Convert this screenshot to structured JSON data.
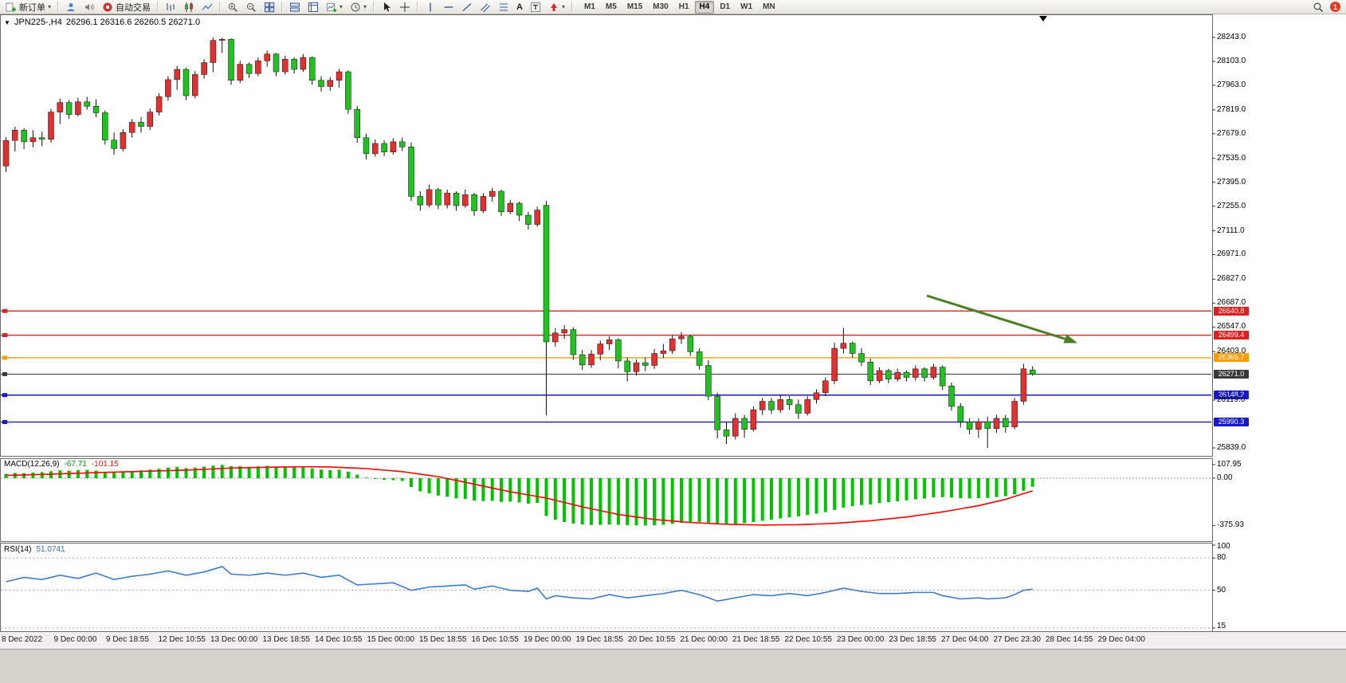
{
  "toolbar": {
    "new_order": "新订单",
    "autotrade": "自动交易",
    "timeframes": [
      "M1",
      "M5",
      "M15",
      "M30",
      "H1",
      "H4",
      "D1",
      "W1",
      "MN"
    ],
    "active_timeframe": "H4",
    "notification_badge": "1"
  },
  "chart_header": {
    "symbol_period": "JPN225-,H4",
    "ohlc": "26296.1 26316.6 26260.5 26271.0"
  },
  "price_axis_ticks": [
    "28243.0",
    "28103.0",
    "27963.0",
    "27819.0",
    "27679.0",
    "27535.0",
    "27395.0",
    "27255.0",
    "27111.0",
    "26971.0",
    "26827.0",
    "26687.0",
    "26547.0",
    "26403.0",
    "26119.0",
    "25839.0"
  ],
  "price_lines": [
    {
      "name": "resistance-1",
      "value": 26640.8,
      "label": "26640.8",
      "color": "#e02020"
    },
    {
      "name": "resistance-2",
      "value": 26499.4,
      "label": "26499.4",
      "color": "#e02020"
    },
    {
      "name": "pivot-orange",
      "value": 26366.7,
      "label": "26366.7",
      "color": "#ff9c00"
    },
    {
      "name": "current-price",
      "value": 26271.0,
      "label": "26271.0",
      "color": "#3a3a3a"
    },
    {
      "name": "support-1",
      "value": 26148.2,
      "label": "26148.2",
      "color": "#1818cc"
    },
    {
      "name": "support-2",
      "value": 25990.3,
      "label": "25990.3",
      "color": "#1818cc"
    }
  ],
  "macd_panel": {
    "label": "MACD(12,26,9)",
    "macd_value": "-67.71",
    "signal_value": "-101.15",
    "axis": [
      "107.95",
      "0.00",
      "-375.93"
    ]
  },
  "rsi_panel": {
    "label": "RSI(14)",
    "value": "51.0741",
    "axis": [
      "100",
      "80",
      "50",
      "15"
    ],
    "levels": [
      80,
      50,
      15
    ]
  },
  "time_axis": [
    "8 Dec 2022",
    "9 Dec 00:00",
    "9 Dec 18:55",
    "12 Dec 10:55",
    "13 Dec 00:00",
    "13 Dec 18:55",
    "14 Dec 10:55",
    "15 Dec 00:00",
    "15 Dec 18:55",
    "16 Dec 10:55",
    "19 Dec 00:00",
    "19 Dec 18:55",
    "20 Dec 10:55",
    "21 Dec 00:00",
    "21 Dec 18:55",
    "22 Dec 10:55",
    "23 Dec 00:00",
    "23 Dec 18:55",
    "27 Dec 04:00",
    "27 Dec 23:30",
    "28 Dec 14:55",
    "29 Dec 04:00"
  ],
  "chart_data": [
    {
      "type": "candlestick",
      "title": "JPN225- H4",
      "up_color": "#e03030",
      "down_color": "#22c122",
      "price_range": [
        25838,
        28243
      ],
      "note": "red = bullish, green = bearish (CN convention)",
      "candles": [
        [
          27490,
          27660,
          27455,
          27640
        ],
        [
          27640,
          27720,
          27575,
          27700
        ],
        [
          27700,
          27712,
          27590,
          27632
        ],
        [
          27632,
          27700,
          27600,
          27656
        ],
        [
          27656,
          27692,
          27606,
          27646
        ],
        [
          27646,
          27825,
          27626,
          27806
        ],
        [
          27806,
          27885,
          27736,
          27862
        ],
        [
          27862,
          27876,
          27766,
          27792
        ],
        [
          27792,
          27890,
          27780,
          27866
        ],
        [
          27866,
          27896,
          27820,
          27840
        ],
        [
          27840,
          27880,
          27776,
          27802
        ],
        [
          27802,
          27816,
          27616,
          27642
        ],
        [
          27642,
          27686,
          27556,
          27592
        ],
        [
          27592,
          27706,
          27576,
          27686
        ],
        [
          27686,
          27766,
          27656,
          27746
        ],
        [
          27746,
          27776,
          27686,
          27722
        ],
        [
          27722,
          27826,
          27702,
          27806
        ],
        [
          27806,
          27916,
          27786,
          27896
        ],
        [
          27896,
          28016,
          27872,
          27996
        ],
        [
          27996,
          28076,
          27936,
          28056
        ],
        [
          28056,
          28066,
          27876,
          27902
        ],
        [
          27902,
          28046,
          27886,
          28026
        ],
        [
          28026,
          28116,
          28002,
          28096
        ],
        [
          28096,
          28243,
          28040,
          28226
        ],
        [
          28226,
          28240,
          28152,
          28232
        ],
        [
          28232,
          28238,
          27966,
          27992
        ],
        [
          27992,
          28106,
          27976,
          28086
        ],
        [
          28086,
          28096,
          28006,
          28032
        ],
        [
          28032,
          28126,
          28016,
          28106
        ],
        [
          28106,
          28166,
          28072,
          28146
        ],
        [
          28146,
          28152,
          28016,
          28042
        ],
        [
          28042,
          28136,
          28026,
          28116
        ],
        [
          28116,
          28126,
          28032,
          28056
        ],
        [
          28056,
          28146,
          28042,
          28126
        ],
        [
          28126,
          28132,
          27966,
          27992
        ],
        [
          27992,
          28016,
          27926,
          27956
        ],
        [
          27956,
          28012,
          27930,
          27992
        ],
        [
          27992,
          28060,
          27950,
          28042
        ],
        [
          28042,
          28050,
          27796,
          27822
        ],
        [
          27822,
          27842,
          27626,
          27656
        ],
        [
          27656,
          27680,
          27528,
          27562
        ],
        [
          27562,
          27645,
          27545,
          27622
        ],
        [
          27622,
          27640,
          27548,
          27572
        ],
        [
          27572,
          27652,
          27556,
          27632
        ],
        [
          27632,
          27656,
          27578,
          27602
        ],
        [
          27602,
          27628,
          27286,
          27312
        ],
        [
          27312,
          27342,
          27228,
          27262
        ],
        [
          27262,
          27382,
          27248,
          27352
        ],
        [
          27352,
          27362,
          27238,
          27262
        ],
        [
          27262,
          27352,
          27242,
          27332
        ],
        [
          27332,
          27342,
          27228,
          27258
        ],
        [
          27258,
          27352,
          27246,
          27322
        ],
        [
          27322,
          27332,
          27198,
          27228
        ],
        [
          27228,
          27332,
          27215,
          27312
        ],
        [
          27312,
          27362,
          27282,
          27342
        ],
        [
          27342,
          27352,
          27198,
          27222
        ],
        [
          27222,
          27292,
          27208,
          27272
        ],
        [
          27272,
          27282,
          27168,
          27202
        ],
        [
          27202,
          27222,
          27118,
          27148
        ],
        [
          27148,
          27252,
          27135,
          27232
        ],
        [
          27260,
          27285,
          26030,
          26460
        ],
        [
          26460,
          26540,
          26432,
          26512
        ],
        [
          26512,
          26558,
          26478,
          26532
        ],
        [
          26532,
          26545,
          26355,
          26385
        ],
        [
          26385,
          26412,
          26295,
          26325
        ],
        [
          26325,
          26412,
          26308,
          26388
        ],
        [
          26388,
          26468,
          26352,
          26448
        ],
        [
          26448,
          26492,
          26412,
          26472
        ],
        [
          26472,
          26482,
          26305,
          26348
        ],
        [
          26348,
          26368,
          26228,
          26285
        ],
        [
          26285,
          26358,
          26262,
          26338
        ],
        [
          26338,
          26368,
          26288,
          26322
        ],
        [
          26322,
          26418,
          26302,
          26392
        ],
        [
          26392,
          26448,
          26365,
          26408
        ],
        [
          26408,
          26498,
          26388,
          26478
        ],
        [
          26478,
          26518,
          26448,
          26492
        ],
        [
          26492,
          26502,
          26378,
          26402
        ],
        [
          26402,
          26422,
          26298,
          26322
        ],
        [
          26322,
          26352,
          26118,
          26142
        ],
        [
          26142,
          26162,
          25895,
          25945
        ],
        [
          25945,
          25992,
          25862,
          25908
        ],
        [
          25908,
          26042,
          25888,
          26012
        ],
        [
          26012,
          26032,
          25898,
          25948
        ],
        [
          25948,
          26082,
          25935,
          26062
        ],
        [
          26062,
          26132,
          26032,
          26112
        ],
        [
          26112,
          26132,
          26038,
          26062
        ],
        [
          26062,
          26152,
          26045,
          26122
        ],
        [
          26122,
          26142,
          26062,
          26092
        ],
        [
          26092,
          26122,
          26008,
          26042
        ],
        [
          26042,
          26142,
          26028,
          26122
        ],
        [
          26122,
          26182,
          26098,
          26162
        ],
        [
          26162,
          26252,
          26142,
          26232
        ],
        [
          26232,
          26455,
          26212,
          26422
        ],
        [
          26422,
          26542,
          26392,
          26452
        ],
        [
          26452,
          26462,
          26368,
          26392
        ],
        [
          26392,
          26422,
          26318,
          26342
        ],
        [
          26342,
          26362,
          26208,
          26232
        ],
        [
          26232,
          26312,
          26218,
          26292
        ],
        [
          26292,
          26302,
          26218,
          26242
        ],
        [
          26242,
          26302,
          26228,
          26282
        ],
        [
          26282,
          26292,
          26228,
          26252
        ],
        [
          26252,
          26322,
          26232,
          26302
        ],
        [
          26302,
          26312,
          26228,
          26252
        ],
        [
          26252,
          26332,
          26238,
          26312
        ],
        [
          26312,
          26322,
          26178,
          26202
        ],
        [
          26202,
          26222,
          26058,
          26082
        ],
        [
          26082,
          26102,
          25958,
          25992
        ],
        [
          25992,
          26012,
          25918,
          25948
        ],
        [
          25948,
          26012,
          25898,
          25992
        ],
        [
          25992,
          26022,
          25838,
          25952
        ],
        [
          25952,
          26032,
          25928,
          26012
        ],
        [
          26012,
          26032,
          25928,
          25962
        ],
        [
          25962,
          26132,
          25948,
          26112
        ],
        [
          26112,
          26332,
          26092,
          26302
        ],
        [
          26296.1,
          26316.6,
          26260.5,
          26271.0
        ]
      ]
    },
    {
      "type": "bar",
      "name": "MACD histogram",
      "color": "#00c400",
      "ylim": [
        -375.93,
        107.95
      ],
      "values": [
        35,
        42,
        40,
        45,
        48,
        55,
        62,
        60,
        64,
        66,
        60,
        52,
        46,
        50,
        56,
        62,
        68,
        75,
        84,
        90,
        80,
        84,
        92,
        100,
        106,
        96,
        95,
        90,
        94,
        98,
        88,
        90,
        85,
        88,
        78,
        68,
        64,
        68,
        52,
        28,
        5,
        -6,
        -12,
        -16,
        -22,
        -70,
        -105,
        -120,
        -138,
        -148,
        -160,
        -165,
        -178,
        -182,
        -180,
        -188,
        -186,
        -192,
        -202,
        -196,
        -300,
        -330,
        -348,
        -360,
        -368,
        -372,
        -371,
        -369,
        -371,
        -373,
        -374,
        -375.9,
        -374,
        -370,
        -362,
        -354,
        -349,
        -347,
        -353,
        -362,
        -367,
        -363,
        -357,
        -349,
        -339,
        -330,
        -320,
        -310,
        -303,
        -293,
        -282,
        -270,
        -252,
        -235,
        -222,
        -213,
        -208,
        -198,
        -190,
        -183,
        -176,
        -168,
        -161,
        -153,
        -151,
        -154,
        -159,
        -161,
        -159,
        -157,
        -150,
        -143,
        -128,
        -100,
        -67.71
      ]
    },
    {
      "type": "line",
      "name": "MACD signal",
      "color": "#ff0000",
      "points": [
        [
          0,
          22
        ],
        [
          5,
          32
        ],
        [
          10,
          44
        ],
        [
          15,
          54
        ],
        [
          20,
          64
        ],
        [
          25,
          80
        ],
        [
          30,
          88
        ],
        [
          33,
          91
        ],
        [
          36,
          89
        ],
        [
          40,
          76
        ],
        [
          44,
          52
        ],
        [
          48,
          12
        ],
        [
          52,
          -48
        ],
        [
          56,
          -108
        ],
        [
          60,
          -158
        ],
        [
          64,
          -228
        ],
        [
          68,
          -288
        ],
        [
          72,
          -328
        ],
        [
          76,
          -352
        ],
        [
          80,
          -366
        ],
        [
          84,
          -372
        ],
        [
          88,
          -369
        ],
        [
          92,
          -359
        ],
        [
          96,
          -338
        ],
        [
          100,
          -308
        ],
        [
          104,
          -268
        ],
        [
          108,
          -218
        ],
        [
          111,
          -168
        ],
        [
          113,
          -122
        ],
        [
          114,
          -101.15
        ]
      ]
    },
    {
      "type": "line",
      "name": "RSI",
      "color": "#3f7cc9",
      "ylim": [
        0,
        100
      ],
      "points": [
        [
          0,
          58
        ],
        [
          2,
          62
        ],
        [
          4,
          60
        ],
        [
          6,
          64
        ],
        [
          8,
          61
        ],
        [
          10,
          66
        ],
        [
          12,
          60
        ],
        [
          14,
          63
        ],
        [
          16,
          65
        ],
        [
          18,
          68
        ],
        [
          20,
          64
        ],
        [
          22,
          67
        ],
        [
          24,
          72
        ],
        [
          25,
          65
        ],
        [
          27,
          64
        ],
        [
          29,
          66
        ],
        [
          31,
          64
        ],
        [
          33,
          66
        ],
        [
          35,
          62
        ],
        [
          37,
          64
        ],
        [
          39,
          55
        ],
        [
          41,
          56
        ],
        [
          43,
          57
        ],
        [
          45,
          50
        ],
        [
          47,
          53
        ],
        [
          49,
          54
        ],
        [
          51,
          55
        ],
        [
          52,
          51
        ],
        [
          54,
          54
        ],
        [
          56,
          50
        ],
        [
          58,
          49
        ],
        [
          59,
          52
        ],
        [
          60,
          42
        ],
        [
          61,
          45
        ],
        [
          63,
          43
        ],
        [
          65,
          42
        ],
        [
          67,
          46
        ],
        [
          69,
          43
        ],
        [
          71,
          45
        ],
        [
          73,
          47
        ],
        [
          75,
          50
        ],
        [
          77,
          46
        ],
        [
          79,
          40
        ],
        [
          81,
          43
        ],
        [
          83,
          46
        ],
        [
          85,
          45
        ],
        [
          87,
          47
        ],
        [
          89,
          45
        ],
        [
          91,
          48
        ],
        [
          93,
          52
        ],
        [
          95,
          49
        ],
        [
          97,
          47
        ],
        [
          99,
          47
        ],
        [
          101,
          48
        ],
        [
          103,
          48
        ],
        [
          104,
          45
        ],
        [
          106,
          42
        ],
        [
          108,
          43
        ],
        [
          109,
          42
        ],
        [
          111,
          43
        ],
        [
          112,
          46
        ],
        [
          113,
          50
        ],
        [
          114,
          51.07
        ]
      ]
    }
  ],
  "annotations": {
    "trend_arrow_color": "#4a8022"
  }
}
